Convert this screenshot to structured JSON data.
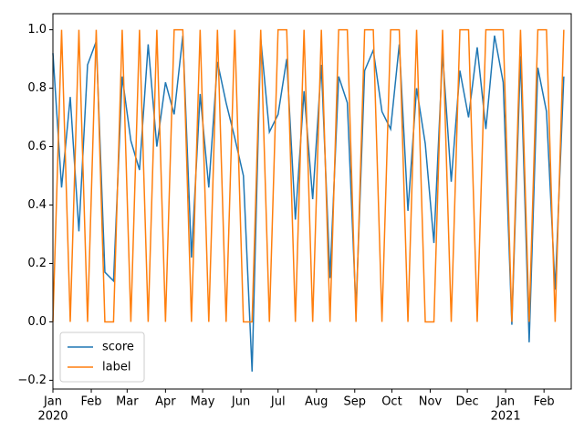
{
  "chart_data": {
    "type": "line",
    "x": [
      "2020-01-01",
      "2020-01-08",
      "2020-01-15",
      "2020-01-22",
      "2020-01-29",
      "2020-02-05",
      "2020-02-12",
      "2020-02-19",
      "2020-02-26",
      "2020-03-04",
      "2020-03-11",
      "2020-03-18",
      "2020-03-25",
      "2020-04-01",
      "2020-04-08",
      "2020-04-15",
      "2020-04-22",
      "2020-04-29",
      "2020-05-06",
      "2020-05-13",
      "2020-05-20",
      "2020-05-27",
      "2020-06-03",
      "2020-06-10",
      "2020-06-17",
      "2020-06-24",
      "2020-07-01",
      "2020-07-08",
      "2020-07-15",
      "2020-07-22",
      "2020-07-29",
      "2020-08-05",
      "2020-08-12",
      "2020-08-19",
      "2020-08-26",
      "2020-09-02",
      "2020-09-09",
      "2020-09-16",
      "2020-09-23",
      "2020-09-30",
      "2020-10-07",
      "2020-10-14",
      "2020-10-21",
      "2020-10-28",
      "2020-11-04",
      "2020-11-11",
      "2020-11-18",
      "2020-11-25",
      "2020-12-02",
      "2020-12-09",
      "2020-12-16",
      "2020-12-23",
      "2020-12-30",
      "2021-01-06",
      "2021-01-13",
      "2021-01-20",
      "2021-01-27",
      "2021-02-03",
      "2021-02-10",
      "2021-02-17"
    ],
    "series": [
      {
        "name": "score",
        "color": "#1f77b4",
        "values": [
          0.92,
          0.46,
          0.77,
          0.31,
          0.88,
          0.96,
          0.17,
          0.14,
          0.84,
          0.62,
          0.52,
          0.95,
          0.6,
          0.82,
          0.71,
          0.98,
          0.22,
          0.78,
          0.46,
          0.89,
          0.75,
          0.63,
          0.5,
          -0.17,
          0.97,
          0.65,
          0.71,
          0.9,
          0.35,
          0.79,
          0.42,
          0.88,
          0.15,
          0.84,
          0.75,
          0.04,
          0.86,
          0.93,
          0.72,
          0.66,
          0.95,
          0.38,
          0.8,
          0.61,
          0.27,
          0.92,
          0.48,
          0.86,
          0.7,
          0.94,
          0.66,
          0.98,
          0.82,
          -0.01,
          0.91,
          -0.07,
          0.87,
          0.72,
          0.11,
          0.84
        ]
      },
      {
        "name": "label",
        "color": "#ff7f0e",
        "values": [
          0,
          1,
          0,
          1,
          0,
          1,
          0,
          0,
          1,
          0,
          1,
          0,
          1,
          0,
          1,
          1,
          0,
          1,
          0,
          1,
          0,
          1,
          0,
          0,
          1,
          0,
          1,
          1,
          0,
          1,
          0,
          1,
          0,
          1,
          1,
          0,
          1,
          1,
          0,
          1,
          1,
          0,
          1,
          0,
          0,
          1,
          0,
          1,
          1,
          0,
          1,
          1,
          1,
          0,
          1,
          0,
          1,
          1,
          0,
          1
        ]
      }
    ],
    "xlim": [
      "2020-01-01",
      "2021-02-23"
    ],
    "xticks": [
      {
        "value": "2020-01-01",
        "label": "Jan"
      },
      {
        "value": "2020-02-01",
        "label": "Feb"
      },
      {
        "value": "2020-03-01",
        "label": "Mar"
      },
      {
        "value": "2020-04-01",
        "label": "Apr"
      },
      {
        "value": "2020-05-01",
        "label": "May"
      },
      {
        "value": "2020-06-01",
        "label": "Jun"
      },
      {
        "value": "2020-07-01",
        "label": "Jul"
      },
      {
        "value": "2020-08-01",
        "label": "Aug"
      },
      {
        "value": "2020-09-01",
        "label": "Sep"
      },
      {
        "value": "2020-10-01",
        "label": "Oct"
      },
      {
        "value": "2020-11-01",
        "label": "Nov"
      },
      {
        "value": "2020-12-01",
        "label": "Dec"
      },
      {
        "value": "2021-01-01",
        "label": "Jan"
      },
      {
        "value": "2021-02-01",
        "label": "Feb"
      }
    ],
    "year_labels": [
      {
        "value": "2020-01-01",
        "label": "2020"
      },
      {
        "value": "2021-01-01",
        "label": "2021"
      }
    ],
    "ylim": [
      -0.23,
      1.055
    ],
    "yticks": [
      {
        "value": -0.2,
        "label": "−0.2"
      },
      {
        "value": 0,
        "label": "0.0"
      },
      0.2,
      0.4,
      0.6,
      0.8,
      {
        "value": 1,
        "label": "1.0"
      }
    ],
    "legend": "lower left"
  }
}
